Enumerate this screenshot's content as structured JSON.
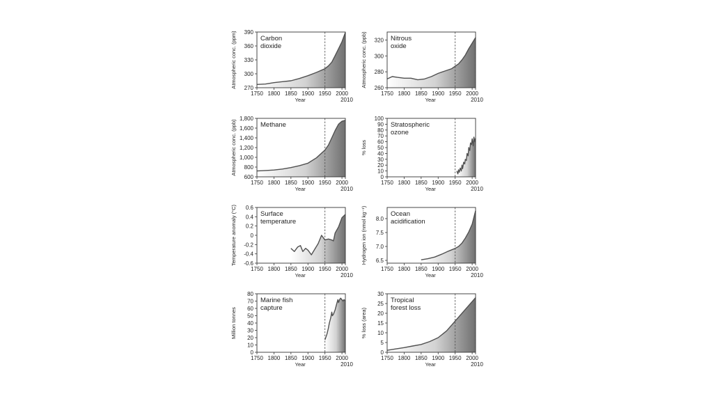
{
  "panel_shade": {
    "start": "#ffffff",
    "end": "#707070",
    "line": "#505050",
    "axis": "#333333"
  },
  "chart_data": [
    {
      "type": "area",
      "title": "Carbon\ndioxide",
      "xlabel": "Year",
      "ylabel": "Atmospheric conc. (ppm)",
      "xlim": [
        1750,
        2010
      ],
      "ylim": [
        270,
        390
      ],
      "marker_year": 1950,
      "x_ticks": [
        1750,
        1800,
        1850,
        1900,
        1950,
        2000
      ],
      "x_extra_tick": 2010,
      "y_ticks": [
        270,
        300,
        330,
        360,
        390
      ],
      "x": [
        1750,
        1775,
        1800,
        1825,
        1850,
        1875,
        1900,
        1925,
        1950,
        1960,
        1970,
        1980,
        1990,
        2000,
        2010
      ],
      "y": [
        277,
        278,
        281,
        283,
        285,
        290,
        296,
        303,
        311,
        317,
        325,
        339,
        354,
        369,
        389
      ]
    },
    {
      "type": "area",
      "title": "Nitrous\noxide",
      "xlabel": "Year",
      "ylabel": "Atmospheric conc. (ppb)",
      "xlim": [
        1750,
        2010
      ],
      "ylim": [
        260,
        330
      ],
      "marker_year": 1950,
      "x_ticks": [
        1750,
        1800,
        1850,
        1900,
        1950,
        2000
      ],
      "x_extra_tick": 2010,
      "y_ticks": [
        260,
        280,
        300,
        320
      ],
      "x": [
        1750,
        1765,
        1780,
        1800,
        1820,
        1840,
        1860,
        1880,
        1900,
        1920,
        1940,
        1950,
        1960,
        1970,
        1980,
        1990,
        2000,
        2010
      ],
      "y": [
        271,
        274,
        273,
        272,
        272,
        270,
        271,
        274,
        278,
        281,
        284,
        287,
        290,
        295,
        301,
        309,
        316,
        323
      ]
    },
    {
      "type": "area",
      "title": "Methane",
      "xlabel": "Year",
      "ylabel": "Atmospheric conc. (ppb)",
      "xlim": [
        1750,
        2010
      ],
      "ylim": [
        600,
        1800
      ],
      "marker_year": 1950,
      "x_ticks": [
        1750,
        1800,
        1850,
        1900,
        1950,
        2000
      ],
      "x_extra_tick": 2010,
      "y_ticks": [
        600,
        800,
        1000,
        1200,
        1400,
        1600,
        1800
      ],
      "y_tick_labels": [
        "600",
        "800",
        "1,000",
        "1,200",
        "1,400",
        "1,600",
        "1,800"
      ],
      "x": [
        1750,
        1775,
        1800,
        1825,
        1850,
        1875,
        1900,
        1925,
        1950,
        1960,
        1970,
        1980,
        1990,
        2000,
        2010
      ],
      "y": [
        720,
        730,
        740,
        760,
        790,
        830,
        880,
        990,
        1150,
        1250,
        1400,
        1550,
        1680,
        1740,
        1760
      ]
    },
    {
      "type": "area",
      "title": "Stratospheric\nozone",
      "xlabel": "Year",
      "ylabel": "% loss",
      "xlim": [
        1750,
        2010
      ],
      "ylim": [
        0,
        100
      ],
      "marker_year": 1950,
      "x_ticks": [
        1750,
        1800,
        1850,
        1900,
        1950,
        2000
      ],
      "x_extra_tick": 2010,
      "y_ticks": [
        0,
        10,
        20,
        30,
        40,
        50,
        60,
        70,
        80,
        90,
        100
      ],
      "x": [
        1955,
        1958,
        1960,
        1962,
        1965,
        1968,
        1970,
        1972,
        1975,
        1978,
        1980,
        1983,
        1985,
        1988,
        1990,
        1993,
        1995,
        1998,
        2000,
        2003,
        2005,
        2008,
        2010
      ],
      "y": [
        10,
        5,
        12,
        8,
        15,
        10,
        20,
        14,
        25,
        22,
        30,
        28,
        40,
        36,
        50,
        45,
        58,
        55,
        65,
        53,
        68,
        60,
        66
      ]
    },
    {
      "type": "area",
      "title": "Surface\ntemperature",
      "xlabel": "Year",
      "ylabel": "Temperature anomaly (°C)",
      "xlim": [
        1750,
        2010
      ],
      "ylim": [
        -0.6,
        0.6
      ],
      "marker_year": 1950,
      "x_ticks": [
        1750,
        1800,
        1850,
        1900,
        1950,
        2000
      ],
      "x_extra_tick": 2010,
      "y_ticks": [
        -0.6,
        -0.4,
        -0.2,
        0,
        0.2,
        0.4,
        0.6
      ],
      "y_tick_labels": [
        "-0.6",
        "-0.4",
        "-0.2",
        "0",
        "0.2",
        "0.4",
        "0.6"
      ],
      "x": [
        1850,
        1860,
        1870,
        1878,
        1885,
        1893,
        1900,
        1910,
        1920,
        1930,
        1940,
        1945,
        1950,
        1960,
        1970,
        1975,
        1980,
        1990,
        2000,
        2010
      ],
      "y": [
        -0.28,
        -0.35,
        -0.25,
        -0.22,
        -0.35,
        -0.28,
        -0.32,
        -0.42,
        -0.3,
        -0.18,
        0.0,
        -0.05,
        -0.1,
        -0.08,
        -0.1,
        -0.12,
        0.05,
        0.18,
        0.38,
        0.45
      ]
    },
    {
      "type": "area",
      "title": "Ocean\nacidification",
      "xlabel": "Year",
      "ylabel": "Hydrogen ion (nmol kg⁻¹)",
      "xlim": [
        1750,
        2010
      ],
      "ylim": [
        6.4,
        8.4
      ],
      "marker_year": 1950,
      "x_ticks": [
        1750,
        1800,
        1850,
        1900,
        1950,
        2000
      ],
      "x_extra_tick": 2010,
      "y_ticks": [
        6.5,
        7.0,
        7.5,
        8.0
      ],
      "y_tick_labels": [
        "6.5",
        "7.0",
        "7.5",
        "8.0"
      ],
      "x": [
        1850,
        1870,
        1890,
        1910,
        1930,
        1950,
        1960,
        1970,
        1980,
        1990,
        2000,
        2010
      ],
      "y": [
        6.52,
        6.56,
        6.62,
        6.72,
        6.83,
        6.93,
        7.0,
        7.12,
        7.3,
        7.52,
        7.8,
        8.28
      ]
    },
    {
      "type": "area",
      "title": "Marine fish\ncapture",
      "xlabel": "Year",
      "ylabel": "Million tonnes",
      "xlim": [
        1750,
        2010
      ],
      "ylim": [
        0,
        80
      ],
      "marker_year": 1950,
      "x_ticks": [
        1750,
        1800,
        1850,
        1900,
        1950,
        2000
      ],
      "x_extra_tick": 2010,
      "y_ticks": [
        0,
        10,
        20,
        30,
        40,
        50,
        60,
        70,
        80
      ],
      "x": [
        1950,
        1953,
        1956,
        1960,
        1963,
        1967,
        1970,
        1972,
        1975,
        1980,
        1985,
        1988,
        1990,
        1993,
        1996,
        2000,
        2003,
        2006,
        2010
      ],
      "y": [
        17,
        21,
        25,
        33,
        40,
        47,
        55,
        50,
        52,
        58,
        67,
        72,
        68,
        72,
        74,
        72,
        70,
        72,
        70
      ]
    },
    {
      "type": "area",
      "title": "Tropical\nforest loss",
      "xlabel": "Year",
      "ylabel": "% loss (area)",
      "xlim": [
        1750,
        2010
      ],
      "ylim": [
        0,
        30
      ],
      "marker_year": 1950,
      "x_ticks": [
        1750,
        1800,
        1850,
        1900,
        1950,
        2000
      ],
      "x_extra_tick": 2010,
      "y_ticks": [
        0,
        5,
        10,
        15,
        20,
        25,
        30
      ],
      "x": [
        1750,
        1775,
        1800,
        1825,
        1850,
        1875,
        1900,
        1925,
        1950,
        1960,
        1970,
        1980,
        1990,
        2000,
        2010
      ],
      "y": [
        1.0,
        1.7,
        2.4,
        3.2,
        4.0,
        5.5,
        7.5,
        11.0,
        16.0,
        18.0,
        20.0,
        22.0,
        24.0,
        26.0,
        28.0
      ]
    }
  ]
}
